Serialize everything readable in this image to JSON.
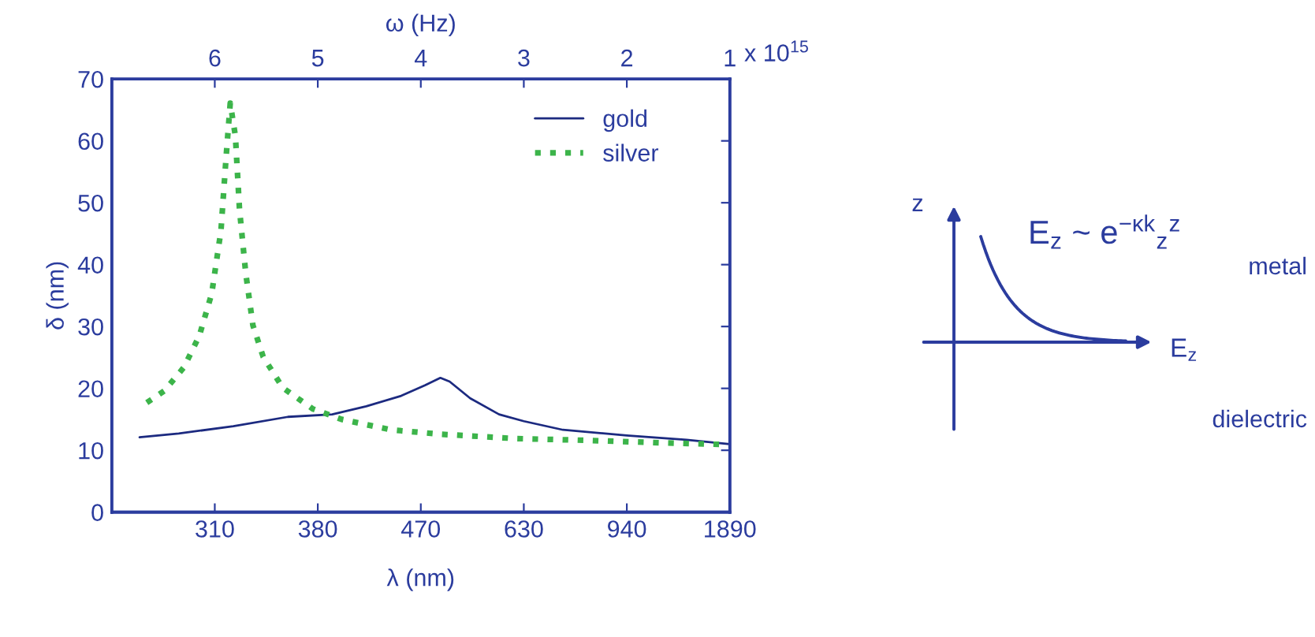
{
  "chart_data": {
    "type": "line",
    "ylabel": "δ (nm)",
    "xlabel": "λ (nm)",
    "x2label": "ω (Hz)",
    "categories": [
      "310",
      "380",
      "470",
      "630",
      "940",
      "1890"
    ],
    "x2lim": [
      7,
      1
    ],
    "x2ticks": [
      6,
      5,
      4,
      3,
      2,
      1
    ],
    "ylim": [
      0,
      70
    ],
    "yticks": [
      0,
      10,
      20,
      30,
      40,
      50,
      60,
      70
    ],
    "grid": false,
    "legend": "top right",
    "marker": "none",
    "series": [
      {
        "name": "gold",
        "color": "#1c2a80",
        "line_style": "solid",
        "axis": "x2",
        "x": [
          6.73,
          6.35,
          5.82,
          5.29,
          4.86,
          4.53,
          4.19,
          3.96,
          3.81,
          3.72,
          3.52,
          3.24,
          3.0,
          2.62,
          2.0,
          1.42,
          1.0
        ],
        "values": [
          12.1,
          12.7,
          13.9,
          15.4,
          15.8,
          17.1,
          18.8,
          20.5,
          21.7,
          21.1,
          18.4,
          15.8,
          14.7,
          13.3,
          12.4,
          11.7,
          11.0
        ]
      },
      {
        "name": "silver",
        "color": "#3cb44a",
        "line_style": "dotted",
        "axis": "x2",
        "x": [
          6.66,
          6.49,
          6.3,
          6.15,
          6.03,
          5.94,
          5.89,
          5.85,
          5.8,
          5.76,
          5.7,
          5.63,
          5.53,
          5.34,
          5.05,
          4.77,
          4.29,
          3.81,
          3.09,
          2.38,
          1.66,
          1.0
        ],
        "values": [
          17.7,
          19.6,
          23.4,
          28.5,
          35.3,
          45.5,
          57.4,
          66.1,
          60.8,
          48.9,
          38.7,
          30.2,
          25.1,
          20.1,
          16.7,
          15.0,
          13.3,
          12.6,
          11.9,
          11.6,
          11.2,
          10.9
        ]
      }
    ],
    "annotations": [
      "x 10$^{15}$",
      "z",
      "E$_{z}$ ~ e$^{−κk}$$_{z}$$^{z}$",
      "E$_{z}$",
      "metal",
      "dielectric"
    ]
  }
}
